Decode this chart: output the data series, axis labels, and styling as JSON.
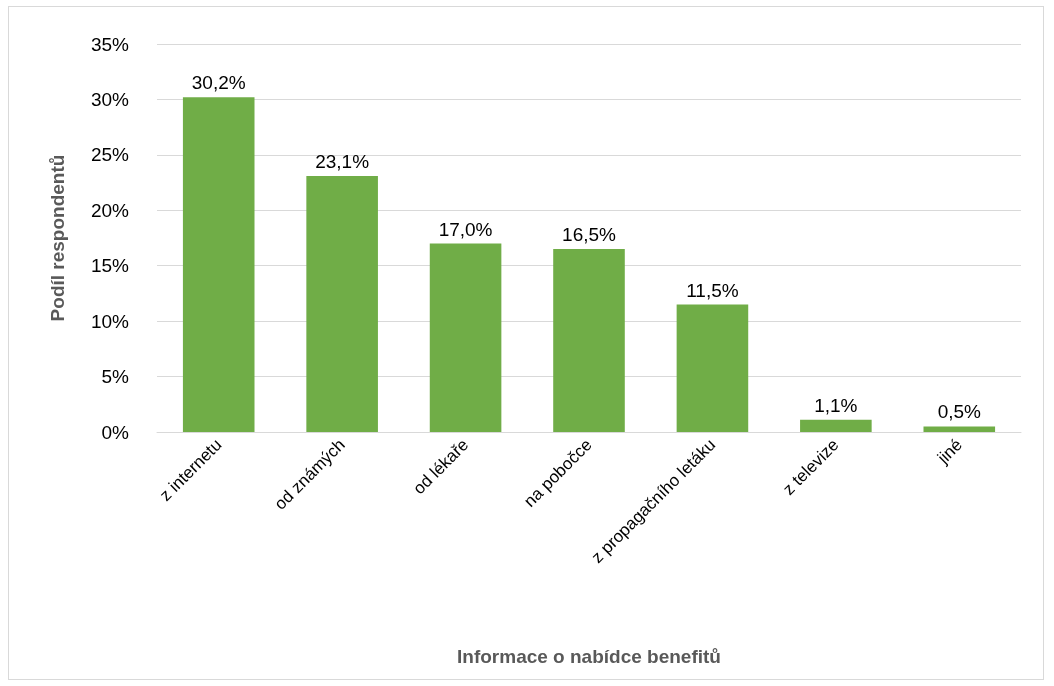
{
  "chart_data": {
    "type": "bar",
    "xlabel": "Informace o nabídce benefitů",
    "ylabel": "Podíl respondentů",
    "categories": [
      "z internetu",
      "od známých",
      "od lékaře",
      "na pobočce",
      "z propagačního letáku",
      "z televize",
      "jiné"
    ],
    "values": [
      30.2,
      23.1,
      17.0,
      16.5,
      11.5,
      1.1,
      0.5
    ],
    "value_labels": [
      "30,2%",
      "23,1%",
      "17,0%",
      "16,5%",
      "11,5%",
      "1,1%",
      "0,5%"
    ],
    "color": "#70ad47",
    "ylim": [
      0,
      35
    ],
    "yticks": [
      {
        "value": 0,
        "label": "0%"
      },
      {
        "value": 5,
        "label": "5%"
      },
      {
        "value": 10,
        "label": "10%"
      },
      {
        "value": 15,
        "label": "15%"
      },
      {
        "value": 20,
        "label": "20%"
      },
      {
        "value": 25,
        "label": "25%"
      },
      {
        "value": 30,
        "label": "30%"
      },
      {
        "value": 35,
        "label": "35%"
      }
    ],
    "grid": "y"
  }
}
